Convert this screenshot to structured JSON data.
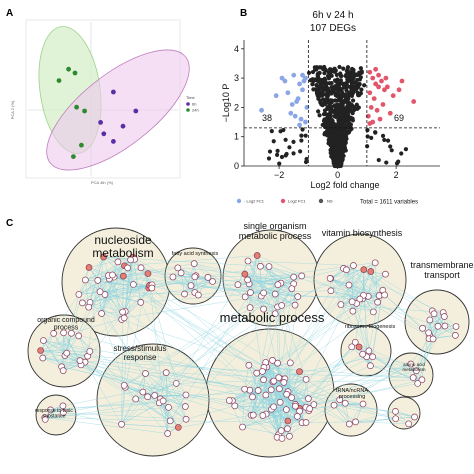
{
  "panels": {
    "a": {
      "letter": "A"
    },
    "b": {
      "letter": "B"
    },
    "c": {
      "letter": "C"
    }
  },
  "colors": {
    "green_fill": "#d6efc9",
    "green_stroke": "#9bd28a",
    "pink_fill": "#ecc9ec",
    "pink_stroke": "#c07fc0",
    "overlap_fill": "#c8c8e8",
    "pt_green": "#2f8a2f",
    "pt_purple": "#5a2ea6",
    "volcano_ns": "#222222",
    "volcano_down": "#8aa6e6",
    "volcano_up": "#e2566b",
    "network_edge": "#8fd4e0",
    "cluster_fill": "#f4efdc",
    "cluster_stroke": "#333333",
    "node_fill": "#ffffff",
    "node_stroke": "#8a3a5a",
    "node_hi": "#e58070"
  },
  "chart_data": [
    {
      "type": "scatter",
      "panel": "A",
      "xlabel": "PCA 4th (%)",
      "ylabel": "PCA 2 (%)",
      "legend": {
        "title": "Time",
        "entries": [
          "6h",
          "24h"
        ],
        "placement": "right"
      },
      "series": [
        {
          "name": "24h",
          "x": [
            -2.0,
            -1.4,
            -1.0,
            -0.9,
            -0.4,
            -1.1,
            -0.6
          ],
          "y": [
            2.3,
            2.6,
            2.5,
            1.6,
            1.5,
            0.3,
            0.6
          ]
        },
        {
          "name": "6h",
          "x": [
            1.4,
            0.6,
            0.8,
            1.4,
            2.0,
            2.8
          ],
          "y": [
            2.0,
            1.2,
            0.9,
            0.7,
            1.1,
            1.5
          ]
        }
      ]
    },
    {
      "type": "scatter",
      "panel": "B",
      "title": "6h v 24 h",
      "subtitle": "107 DEGs",
      "xlabel": "Log2 fold change",
      "ylabel": "−Log10 P",
      "xlim": [
        -3.2,
        3.5
      ],
      "ylim": [
        0,
        4.3
      ],
      "xticks": [
        -2,
        0,
        2
      ],
      "yticks": [
        0,
        1,
        2,
        3,
        4
      ],
      "thresholds": {
        "x": [
          -1,
          1
        ],
        "y": 1.3
      },
      "counts": {
        "down": "38",
        "up": "69"
      },
      "legend": {
        "placement": "bottom",
        "entries": [
          "- Log2 FC1",
          "Log2 FC1",
          "NS"
        ],
        "total": "Total = 1611 variables"
      },
      "series": [
        {
          "name": "- Log2 FC1",
          "x": [
            -1.1,
            -1.3,
            -1.5,
            -1.2,
            -1.8,
            -2.1,
            -1.4,
            -1.05,
            -1.6,
            -1.25,
            -2.6,
            -1.15,
            -1.7,
            -1.35,
            -1.9,
            -1.1,
            -1.45,
            -1.2,
            -1.55,
            -1.3
          ],
          "y": [
            3.0,
            2.8,
            3.1,
            2.6,
            2.9,
            2.4,
            2.2,
            2.0,
            1.8,
            1.6,
            1.9,
            2.9,
            2.5,
            2.3,
            3.0,
            1.5,
            1.7,
            3.1,
            2.1,
            1.4
          ]
        },
        {
          "name": "Log2 FC1",
          "x": [
            1.1,
            1.2,
            1.3,
            1.4,
            1.5,
            1.6,
            1.1,
            1.25,
            1.7,
            1.9,
            2.1,
            1.15,
            1.35,
            2.6,
            1.05,
            1.45,
            1.8,
            1.2,
            1.55,
            2.2,
            1.3,
            1.65,
            1.1,
            1.4
          ],
          "y": [
            3.2,
            3.0,
            2.8,
            3.1,
            2.9,
            2.6,
            2.5,
            2.3,
            2.7,
            2.4,
            2.6,
            2.0,
            1.9,
            2.2,
            1.7,
            1.6,
            1.8,
            1.5,
            2.1,
            2.9,
            3.3,
            3.0,
            1.45,
            2.7
          ]
        }
      ]
    }
  ],
  "network": {
    "clusters": [
      {
        "label": "nucleoside\nmetabolism",
        "size": "big"
      },
      {
        "label": "fatty acid synthesis",
        "size": "tiny"
      },
      {
        "label": "single organism\nmetabolic process",
        "size": "mid"
      },
      {
        "label": "vitamin biosynthesis",
        "size": "mid"
      },
      {
        "label": "transmembrane\ntransport",
        "size": "mid"
      },
      {
        "label": "organic compound\nprocess",
        "size": "small"
      },
      {
        "label": "metabolic process",
        "size": "huge"
      },
      {
        "label": "ribosome biogenesis",
        "size": "tiny"
      },
      {
        "label": "stress/stimulus\nresponse",
        "size": "small"
      },
      {
        "label": "amino acid\nmetabolism",
        "size": "tiny"
      },
      {
        "label": "response to toxic\nsubstance",
        "size": "tiny"
      },
      {
        "label": "tRNA/ncRNA\nprocessing",
        "size": "tiny"
      }
    ]
  }
}
